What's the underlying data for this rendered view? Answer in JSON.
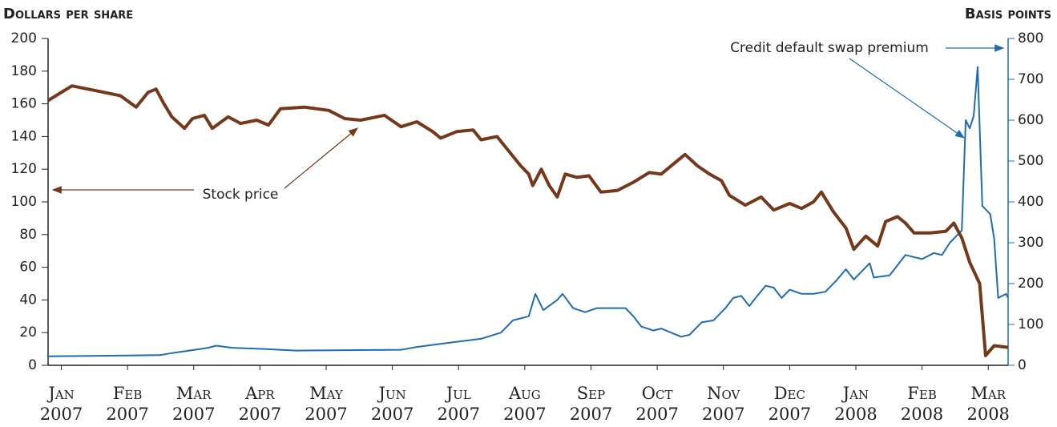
{
  "chart_data": {
    "type": "line",
    "ylabel": "Dollars per share",
    "y2label": "Basis points",
    "xlim": [
      -0.2,
      14.3
    ],
    "xticks": [
      {
        "value": 0,
        "label": "Jan\n2007"
      },
      {
        "value": 1,
        "label": "Feb\n2007"
      },
      {
        "value": 2,
        "label": "Mar\n2007"
      },
      {
        "value": 3,
        "label": "Apr\n2007"
      },
      {
        "value": 4,
        "label": "May\n2007"
      },
      {
        "value": 5,
        "label": "Jun\n2007"
      },
      {
        "value": 6,
        "label": "Jul\n2007"
      },
      {
        "value": 7,
        "label": "Aug\n2007"
      },
      {
        "value": 8,
        "label": "Sep\n2007"
      },
      {
        "value": 9,
        "label": "Oct\n2007"
      },
      {
        "value": 10,
        "label": "Nov\n2007"
      },
      {
        "value": 11,
        "label": "Dec\n2007"
      },
      {
        "value": 12,
        "label": "Jan\n2008"
      },
      {
        "value": 13,
        "label": "Feb\n2008"
      },
      {
        "value": 14,
        "label": "Mar\n2008"
      }
    ],
    "ylim": [
      0,
      200
    ],
    "yticks": [
      0,
      20,
      40,
      60,
      80,
      100,
      120,
      140,
      160,
      180,
      200
    ],
    "y2lim": [
      0,
      800
    ],
    "y2ticks": [
      0,
      100,
      200,
      300,
      400,
      500,
      600,
      700,
      800
    ],
    "series": [
      {
        "name": "Stock price",
        "color": "#74381a",
        "x": [
          -0.2,
          0.16,
          0.53,
          0.89,
          1.13,
          1.31,
          1.43,
          1.55,
          1.67,
          1.86,
          1.98,
          2.16,
          2.28,
          2.52,
          2.71,
          2.95,
          3.13,
          3.31,
          3.67,
          4.04,
          4.28,
          4.52,
          4.88,
          5.13,
          5.37,
          5.61,
          5.73,
          5.97,
          6.22,
          6.34,
          6.58,
          6.82,
          6.94,
          7.06,
          7.12,
          7.25,
          7.37,
          7.49,
          7.61,
          7.79,
          7.97,
          8.15,
          8.4,
          8.64,
          8.88,
          9.06,
          9.24,
          9.42,
          9.61,
          9.79,
          9.97,
          10.09,
          10.33,
          10.57,
          10.76,
          11.0,
          11.18,
          11.36,
          11.48,
          11.66,
          11.85,
          11.97,
          12.15,
          12.33,
          12.45,
          12.63,
          12.75,
          12.88,
          13.12,
          13.36,
          13.48,
          13.6,
          13.72,
          13.87,
          13.96,
          14.09,
          14.3
        ],
        "values": [
          162,
          171,
          168,
          165,
          158,
          167,
          169,
          160,
          152,
          145,
          151,
          153,
          145,
          152,
          148,
          150,
          147,
          157,
          158,
          156,
          151,
          150,
          153,
          146,
          149,
          143,
          139,
          143,
          144,
          138,
          140,
          128,
          122,
          117,
          110,
          120,
          110,
          103,
          117,
          115,
          116,
          106,
          107,
          112,
          118,
          117,
          123,
          129,
          122,
          117,
          113,
          104,
          98,
          103,
          95,
          99,
          96,
          100,
          106,
          94,
          84,
          71,
          79,
          73,
          88,
          91,
          87,
          81,
          81,
          82,
          87,
          78,
          63,
          50,
          6,
          12,
          11
        ]
      },
      {
        "name": "Credit default swap premium",
        "color": "#1f6db0",
        "axis": "y2",
        "x": [
          -0.2,
          1.49,
          1.67,
          2.1,
          2.22,
          2.34,
          2.58,
          3.07,
          3.55,
          5.13,
          5.37,
          5.85,
          6.34,
          6.64,
          6.82,
          7.06,
          7.16,
          7.28,
          7.49,
          7.57,
          7.73,
          7.91,
          8.09,
          8.52,
          8.64,
          8.76,
          8.94,
          9.06,
          9.36,
          9.49,
          9.67,
          9.85,
          10.03,
          10.15,
          10.27,
          10.39,
          10.51,
          10.64,
          10.76,
          10.88,
          11.0,
          11.18,
          11.36,
          11.54,
          11.72,
          11.85,
          11.97,
          12.15,
          12.21,
          12.27,
          12.51,
          12.75,
          13.0,
          13.18,
          13.3,
          13.42,
          13.6,
          13.66,
          13.72,
          13.78,
          13.84,
          13.91,
          14.03,
          14.09,
          14.15,
          14.27,
          14.3
        ],
        "values": [
          22,
          25,
          30,
          40,
          43,
          48,
          43,
          40,
          36,
          38,
          45,
          55,
          65,
          80,
          110,
          120,
          175,
          135,
          160,
          175,
          140,
          130,
          140,
          140,
          120,
          95,
          85,
          90,
          70,
          75,
          105,
          110,
          140,
          165,
          170,
          145,
          170,
          195,
          190,
          165,
          185,
          175,
          175,
          180,
          210,
          235,
          210,
          240,
          250,
          215,
          220,
          270,
          260,
          275,
          270,
          300,
          330,
          600,
          580,
          610,
          730,
          390,
          370,
          310,
          165,
          175,
          165
        ]
      }
    ]
  }
}
